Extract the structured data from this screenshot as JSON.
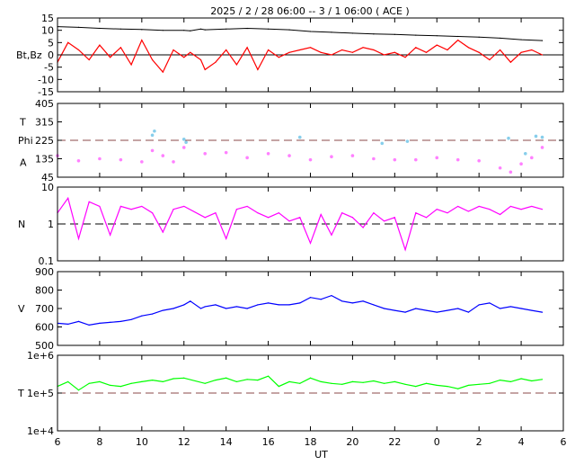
{
  "title": "2025 /  2 / 28   06:00 --   3 /  1   06:00 ( ACE )",
  "colors": {
    "bt": "#000000",
    "bz": "#ff0000",
    "theta": "#87ceeb",
    "phi": "#ff80ff",
    "density": "#ff00ff",
    "speed": "#0000ff",
    "temperature": "#00ff00",
    "reference_line": "#8b4a4a"
  },
  "chart_data": [
    {
      "type": "line",
      "panel": "magnetic-field",
      "ylabel": "Bt,Bz",
      "ylim": [
        -15,
        15
      ],
      "yticks": [
        "15",
        "10",
        "5",
        "0",
        "-5",
        "-10",
        "-15"
      ],
      "reference_line": 0,
      "series": [
        {
          "name": "Bt",
          "x": [
            6,
            7,
            8,
            9,
            10,
            11,
            12,
            12.3,
            12.8,
            13,
            14,
            15,
            16,
            17,
            18,
            19,
            20,
            21,
            22,
            23,
            24,
            25,
            26,
            27,
            28,
            29
          ],
          "y": [
            11.5,
            11.2,
            10.8,
            10.5,
            10.3,
            10,
            10,
            9.8,
            10.5,
            10.2,
            10.5,
            10.8,
            10.5,
            10.2,
            9.5,
            9.2,
            8.8,
            8.5,
            8.3,
            8,
            7.8,
            7.5,
            7.2,
            6.8,
            6.2,
            5.8
          ]
        },
        {
          "name": "Bz",
          "x": [
            6,
            6.5,
            7,
            7.5,
            8,
            8.5,
            9,
            9.5,
            10,
            10.5,
            11,
            11.5,
            12,
            12.3,
            12.8,
            13,
            13.5,
            14,
            14.5,
            15,
            15.5,
            16,
            16.5,
            17,
            17.5,
            18,
            18.5,
            19,
            19.5,
            20,
            20.5,
            21,
            21.5,
            22,
            22.5,
            23,
            23.5,
            24,
            24.5,
            25,
            25.5,
            26,
            26.5,
            27,
            27.5,
            28,
            28.5,
            29
          ],
          "y": [
            -3,
            5,
            2,
            -2,
            4,
            -1,
            3,
            -4,
            6,
            -2,
            -7,
            2,
            -1,
            1,
            -2,
            -6,
            -3,
            2,
            -4,
            3,
            -6,
            2,
            -1,
            1,
            2,
            3,
            1,
            0,
            2,
            1,
            3,
            2,
            0,
            1,
            -1,
            3,
            1,
            4,
            2,
            6,
            3,
            1,
            -2,
            2,
            -3,
            1,
            2,
            0
          ]
        }
      ]
    },
    {
      "type": "scatter",
      "panel": "direction",
      "ylabel_top": "T",
      "ylabel_mid": "Phi",
      "ylabel_bottom": "A",
      "ylim": [
        45,
        405
      ],
      "yticks": [
        "405",
        "315",
        "225",
        "135",
        "45"
      ],
      "reference_line": 225,
      "series": [
        {
          "name": "Theta",
          "x": [
            10.5,
            10.6,
            12,
            12.1,
            17.5,
            21.4,
            22.6,
            27.4,
            28.2,
            28.7,
            29
          ],
          "y": [
            250,
            270,
            230,
            215,
            240,
            210,
            220,
            235,
            160,
            245,
            240
          ]
        },
        {
          "name": "Phi",
          "x": [
            6,
            7,
            8,
            9,
            10,
            10.5,
            11,
            11.5,
            12,
            13,
            14,
            15,
            16,
            17,
            18,
            19,
            20,
            21,
            22,
            23,
            24,
            25,
            26,
            27,
            27.5,
            28,
            28.5,
            29
          ],
          "y": [
            150,
            125,
            135,
            130,
            120,
            175,
            150,
            120,
            190,
            160,
            165,
            140,
            160,
            150,
            130,
            145,
            150,
            135,
            130,
            130,
            140,
            130,
            125,
            90,
            70,
            110,
            140,
            190
          ]
        }
      ]
    },
    {
      "type": "line",
      "panel": "density",
      "ylabel": "N",
      "yscale": "log",
      "ylim": [
        0.1,
        10
      ],
      "yticks": [
        "10",
        "1",
        "0.1"
      ],
      "reference_line": 1,
      "series": [
        {
          "name": "Density",
          "x": [
            6,
            6.5,
            7,
            7.5,
            8,
            8.5,
            9,
            9.5,
            10,
            10.5,
            11,
            11.5,
            12,
            13,
            13.5,
            14,
            14.5,
            15,
            15.5,
            16,
            16.5,
            17,
            17.5,
            18,
            18.5,
            19,
            19.5,
            20,
            20.5,
            21,
            21.5,
            22,
            22.5,
            23,
            23.5,
            24,
            24.5,
            25,
            25.5,
            26,
            26.5,
            27,
            27.5,
            28,
            28.5,
            29
          ],
          "y": [
            2,
            5,
            0.4,
            4,
            3,
            0.5,
            3,
            2.5,
            3,
            2,
            0.6,
            2.5,
            3,
            1.5,
            2,
            0.4,
            2.5,
            3,
            2,
            1.5,
            2,
            1.2,
            1.5,
            0.3,
            1.8,
            0.5,
            2,
            1.5,
            0.8,
            2,
            1.2,
            1.5,
            0.2,
            2,
            1.5,
            2.5,
            2,
            3,
            2.2,
            3,
            2.5,
            1.8,
            3,
            2.5,
            3,
            2.5
          ]
        }
      ]
    },
    {
      "type": "line",
      "panel": "speed",
      "ylabel": "V",
      "ylim": [
        500,
        900
      ],
      "yticks": [
        "900",
        "800",
        "700",
        "600",
        "500"
      ],
      "series": [
        {
          "name": "Speed",
          "x": [
            6,
            6.5,
            7,
            7.5,
            8,
            8.5,
            9,
            9.5,
            10,
            10.5,
            11,
            11.5,
            12,
            12.3,
            12.8,
            13,
            13.5,
            14,
            14.5,
            15,
            15.5,
            16,
            16.5,
            17,
            17.5,
            18,
            18.5,
            19,
            19.5,
            20,
            20.5,
            21,
            21.5,
            22,
            22.5,
            23,
            23.5,
            24,
            24.5,
            25,
            25.5,
            26,
            26.5,
            27,
            27.5,
            28,
            28.5,
            29
          ],
          "y": [
            620,
            615,
            630,
            610,
            620,
            625,
            630,
            640,
            660,
            670,
            690,
            700,
            720,
            740,
            700,
            710,
            720,
            700,
            710,
            700,
            720,
            730,
            720,
            720,
            730,
            760,
            750,
            770,
            740,
            730,
            740,
            720,
            700,
            690,
            680,
            700,
            690,
            680,
            690,
            700,
            680,
            720,
            730,
            700,
            710,
            700,
            690,
            680
          ]
        }
      ]
    },
    {
      "type": "line",
      "panel": "temperature",
      "ylabel": "T",
      "yscale": "log",
      "ylim": [
        10000,
        1000000
      ],
      "yticks": [
        "1e+6",
        "1e+5",
        "1e+4"
      ],
      "reference_line": 100000,
      "xlabel": "UT",
      "xticks": [
        "6",
        "8",
        "10",
        "12",
        "14",
        "16",
        "18",
        "20",
        "22",
        "0",
        "2",
        "4",
        "6"
      ],
      "series": [
        {
          "name": "Temperature",
          "x": [
            6,
            6.5,
            7,
            7.5,
            8,
            8.5,
            9,
            9.5,
            10,
            10.5,
            11,
            11.5,
            12,
            13,
            13.5,
            14,
            14.5,
            15,
            15.5,
            16,
            16.5,
            17,
            17.5,
            18,
            18.5,
            19,
            19.5,
            20,
            20.5,
            21,
            21.5,
            22,
            22.5,
            23,
            23.5,
            24,
            24.5,
            25,
            25.5,
            26,
            26.5,
            27,
            27.5,
            28,
            28.5,
            29
          ],
          "y": [
            150000,
            200000,
            120000,
            180000,
            200000,
            160000,
            150000,
            180000,
            200000,
            220000,
            200000,
            240000,
            250000,
            180000,
            220000,
            250000,
            200000,
            230000,
            220000,
            280000,
            150000,
            200000,
            180000,
            250000,
            200000,
            180000,
            170000,
            200000,
            190000,
            210000,
            180000,
            200000,
            170000,
            150000,
            180000,
            160000,
            150000,
            130000,
            160000,
            170000,
            180000,
            220000,
            200000,
            240000,
            210000,
            230000
          ]
        }
      ]
    }
  ]
}
